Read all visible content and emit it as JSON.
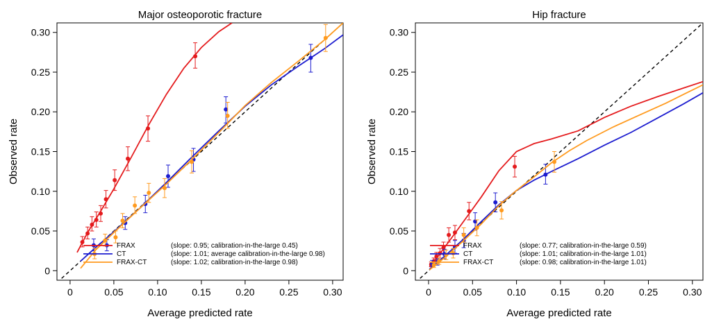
{
  "chart_data": [
    {
      "type": "scatter",
      "title": "Major osteoporotic fracture",
      "xlabel": "Average predicted rate",
      "ylabel": "Observed rate",
      "xlim": [
        -0.015,
        0.312
      ],
      "ylim": [
        -0.012,
        0.312
      ],
      "xticks": [
        "0",
        "0.05",
        "0.10",
        "0.15",
        "0.20",
        "0.25",
        "0.30"
      ],
      "yticks": [
        "0",
        "0.05",
        "0.10",
        "0.15",
        "0.20",
        "0.25",
        "0.30"
      ],
      "legend_position": "bottom-right",
      "series": [
        {
          "name": "FRAX",
          "legend": "(slope: 0.95; calibration-in-the-large 0.45)",
          "color": "#e41a1c",
          "points": [
            {
              "x": 0.014,
              "y": 0.036,
              "lo": 0.03,
              "hi": 0.043
            },
            {
              "x": 0.02,
              "y": 0.047,
              "lo": 0.04,
              "hi": 0.055
            },
            {
              "x": 0.025,
              "y": 0.058,
              "lo": 0.05,
              "hi": 0.068
            },
            {
              "x": 0.03,
              "y": 0.064,
              "lo": 0.055,
              "hi": 0.074
            },
            {
              "x": 0.035,
              "y": 0.072,
              "lo": 0.062,
              "hi": 0.082
            },
            {
              "x": 0.041,
              "y": 0.09,
              "lo": 0.079,
              "hi": 0.101
            },
            {
              "x": 0.051,
              "y": 0.114,
              "lo": 0.101,
              "hi": 0.127
            },
            {
              "x": 0.066,
              "y": 0.141,
              "lo": 0.126,
              "hi": 0.156
            },
            {
              "x": 0.089,
              "y": 0.179,
              "lo": 0.163,
              "hi": 0.195
            },
            {
              "x": 0.143,
              "y": 0.27,
              "lo": 0.255,
              "hi": 0.287
            }
          ],
          "curve": [
            [
              0.008,
              0.023
            ],
            [
              0.02,
              0.048
            ],
            [
              0.035,
              0.075
            ],
            [
              0.05,
              0.103
            ],
            [
              0.07,
              0.143
            ],
            [
              0.09,
              0.184
            ],
            [
              0.11,
              0.222
            ],
            [
              0.13,
              0.255
            ],
            [
              0.15,
              0.281
            ],
            [
              0.17,
              0.301
            ],
            [
              0.185,
              0.312
            ]
          ]
        },
        {
          "name": "CT",
          "legend": "(slope: 1.01; average calibration-in-the-large 0.98)",
          "color": "#1c1ccf",
          "points": [
            {
              "x": 0.027,
              "y": 0.032,
              "lo": 0.025,
              "hi": 0.04
            },
            {
              "x": 0.042,
              "y": 0.032,
              "lo": 0.025,
              "hi": 0.039
            },
            {
              "x": 0.063,
              "y": 0.06,
              "lo": 0.052,
              "hi": 0.068
            },
            {
              "x": 0.086,
              "y": 0.084,
              "lo": 0.073,
              "hi": 0.095
            },
            {
              "x": 0.112,
              "y": 0.119,
              "lo": 0.105,
              "hi": 0.133
            },
            {
              "x": 0.141,
              "y": 0.14,
              "lo": 0.125,
              "hi": 0.154
            },
            {
              "x": 0.178,
              "y": 0.203,
              "lo": 0.186,
              "hi": 0.219
            },
            {
              "x": 0.275,
              "y": 0.268,
              "lo": 0.25,
              "hi": 0.285
            }
          ],
          "curve": [
            [
              0.012,
              0.012
            ],
            [
              0.03,
              0.03
            ],
            [
              0.05,
              0.049
            ],
            [
              0.08,
              0.079
            ],
            [
              0.11,
              0.111
            ],
            [
              0.14,
              0.144
            ],
            [
              0.17,
              0.176
            ],
            [
              0.2,
              0.207
            ],
            [
              0.23,
              0.234
            ],
            [
              0.26,
              0.257
            ],
            [
              0.29,
              0.279
            ],
            [
              0.312,
              0.297
            ]
          ]
        },
        {
          "name": "FRAX-CT",
          "legend": "(slope: 1.02; calibration-in-the-large 0.98)",
          "color": "#ff9a1e",
          "points": [
            {
              "x": 0.028,
              "y": 0.021,
              "lo": 0.015,
              "hi": 0.028
            },
            {
              "x": 0.04,
              "y": 0.038,
              "lo": 0.031,
              "hi": 0.046
            },
            {
              "x": 0.052,
              "y": 0.042,
              "lo": 0.035,
              "hi": 0.05
            },
            {
              "x": 0.06,
              "y": 0.063,
              "lo": 0.054,
              "hi": 0.072
            },
            {
              "x": 0.074,
              "y": 0.082,
              "lo": 0.072,
              "hi": 0.093
            },
            {
              "x": 0.09,
              "y": 0.098,
              "lo": 0.086,
              "hi": 0.11
            },
            {
              "x": 0.108,
              "y": 0.104,
              "lo": 0.092,
              "hi": 0.116
            },
            {
              "x": 0.139,
              "y": 0.137,
              "lo": 0.123,
              "hi": 0.151
            },
            {
              "x": 0.18,
              "y": 0.195,
              "lo": 0.179,
              "hi": 0.212
            },
            {
              "x": 0.292,
              "y": 0.293,
              "lo": 0.276,
              "hi": 0.31
            }
          ],
          "curve": [
            [
              0.012,
              0.003
            ],
            [
              0.03,
              0.027
            ],
            [
              0.05,
              0.048
            ],
            [
              0.08,
              0.079
            ],
            [
              0.11,
              0.109
            ],
            [
              0.14,
              0.141
            ],
            [
              0.17,
              0.174
            ],
            [
              0.2,
              0.208
            ],
            [
              0.23,
              0.237
            ],
            [
              0.26,
              0.263
            ],
            [
              0.29,
              0.29
            ],
            [
              0.312,
              0.312
            ]
          ]
        }
      ]
    },
    {
      "type": "scatter",
      "title": "Hip fracture",
      "xlabel": "Average predicted rate",
      "ylabel": "Observed rate",
      "xlim": [
        -0.015,
        0.312
      ],
      "ylim": [
        -0.012,
        0.312
      ],
      "xticks": [
        "0",
        "0.05",
        "0.10",
        "0.15",
        "0.20",
        "0.25",
        "0.30"
      ],
      "yticks": [
        "0",
        "0.05",
        "0.10",
        "0.15",
        "0.20",
        "0.25",
        "0.30"
      ],
      "legend_position": "bottom-right",
      "series": [
        {
          "name": "FRAX",
          "legend": "(slope: 0.77; calibration-in-the-large 0.59)",
          "color": "#e41a1c",
          "points": [
            {
              "x": 0.003,
              "y": 0.008,
              "lo": 0.005,
              "hi": 0.011
            },
            {
              "x": 0.006,
              "y": 0.012,
              "lo": 0.008,
              "hi": 0.016
            },
            {
              "x": 0.009,
              "y": 0.018,
              "lo": 0.013,
              "hi": 0.023
            },
            {
              "x": 0.013,
              "y": 0.022,
              "lo": 0.016,
              "hi": 0.028
            },
            {
              "x": 0.017,
              "y": 0.029,
              "lo": 0.022,
              "hi": 0.036
            },
            {
              "x": 0.023,
              "y": 0.045,
              "lo": 0.036,
              "hi": 0.054
            },
            {
              "x": 0.03,
              "y": 0.048,
              "lo": 0.039,
              "hi": 0.057
            },
            {
              "x": 0.046,
              "y": 0.075,
              "lo": 0.064,
              "hi": 0.086
            },
            {
              "x": 0.098,
              "y": 0.131,
              "lo": 0.118,
              "hi": 0.144
            }
          ],
          "curve": [
            [
              0.001,
              0.005
            ],
            [
              0.01,
              0.017
            ],
            [
              0.02,
              0.032
            ],
            [
              0.03,
              0.047
            ],
            [
              0.045,
              0.07
            ],
            [
              0.06,
              0.093
            ],
            [
              0.08,
              0.126
            ],
            [
              0.1,
              0.15
            ],
            [
              0.12,
              0.16
            ],
            [
              0.14,
              0.166
            ],
            [
              0.17,
              0.176
            ],
            [
              0.2,
              0.193
            ],
            [
              0.23,
              0.207
            ],
            [
              0.26,
              0.219
            ],
            [
              0.29,
              0.23
            ],
            [
              0.312,
              0.238
            ]
          ]
        },
        {
          "name": "CT",
          "legend": "(slope: 1.01; calibration-in-the-large 1.01)",
          "color": "#1c1ccf",
          "points": [
            {
              "x": 0.004,
              "y": 0.009,
              "lo": 0.006,
              "hi": 0.013
            },
            {
              "x": 0.01,
              "y": 0.011,
              "lo": 0.007,
              "hi": 0.015
            },
            {
              "x": 0.018,
              "y": 0.021,
              "lo": 0.015,
              "hi": 0.027
            },
            {
              "x": 0.03,
              "y": 0.03,
              "lo": 0.022,
              "hi": 0.038
            },
            {
              "x": 0.04,
              "y": 0.038,
              "lo": 0.029,
              "hi": 0.047
            },
            {
              "x": 0.053,
              "y": 0.062,
              "lo": 0.051,
              "hi": 0.073
            },
            {
              "x": 0.076,
              "y": 0.086,
              "lo": 0.074,
              "hi": 0.098
            },
            {
              "x": 0.133,
              "y": 0.121,
              "lo": 0.109,
              "hi": 0.134
            }
          ],
          "curve": [
            [
              0.001,
              0.002
            ],
            [
              0.02,
              0.02
            ],
            [
              0.04,
              0.04
            ],
            [
              0.06,
              0.062
            ],
            [
              0.08,
              0.083
            ],
            [
              0.1,
              0.101
            ],
            [
              0.12,
              0.114
            ],
            [
              0.14,
              0.125
            ],
            [
              0.17,
              0.141
            ],
            [
              0.2,
              0.158
            ],
            [
              0.23,
              0.174
            ],
            [
              0.26,
              0.192
            ],
            [
              0.29,
              0.21
            ],
            [
              0.312,
              0.224
            ]
          ]
        },
        {
          "name": "FRAX-CT",
          "legend": "(slope: 0.98; calibration-in-the-large 1.01)",
          "color": "#ff9a1e",
          "points": [
            {
              "x": 0.006,
              "y": 0.007,
              "lo": 0.004,
              "hi": 0.01
            },
            {
              "x": 0.012,
              "y": 0.012,
              "lo": 0.008,
              "hi": 0.016
            },
            {
              "x": 0.02,
              "y": 0.02,
              "lo": 0.014,
              "hi": 0.026
            },
            {
              "x": 0.028,
              "y": 0.022,
              "lo": 0.016,
              "hi": 0.028
            },
            {
              "x": 0.04,
              "y": 0.045,
              "lo": 0.036,
              "hi": 0.054
            },
            {
              "x": 0.055,
              "y": 0.054,
              "lo": 0.044,
              "hi": 0.064
            },
            {
              "x": 0.083,
              "y": 0.076,
              "lo": 0.065,
              "hi": 0.087
            },
            {
              "x": 0.143,
              "y": 0.137,
              "lo": 0.124,
              "hi": 0.15
            }
          ],
          "curve": [
            [
              0.001,
              0.001
            ],
            [
              0.02,
              0.018
            ],
            [
              0.04,
              0.038
            ],
            [
              0.06,
              0.059
            ],
            [
              0.08,
              0.082
            ],
            [
              0.1,
              0.101
            ],
            [
              0.12,
              0.118
            ],
            [
              0.14,
              0.136
            ],
            [
              0.16,
              0.151
            ],
            [
              0.18,
              0.164
            ],
            [
              0.21,
              0.181
            ],
            [
              0.24,
              0.196
            ],
            [
              0.27,
              0.211
            ],
            [
              0.29,
              0.222
            ],
            [
              0.312,
              0.234
            ]
          ]
        }
      ]
    }
  ]
}
